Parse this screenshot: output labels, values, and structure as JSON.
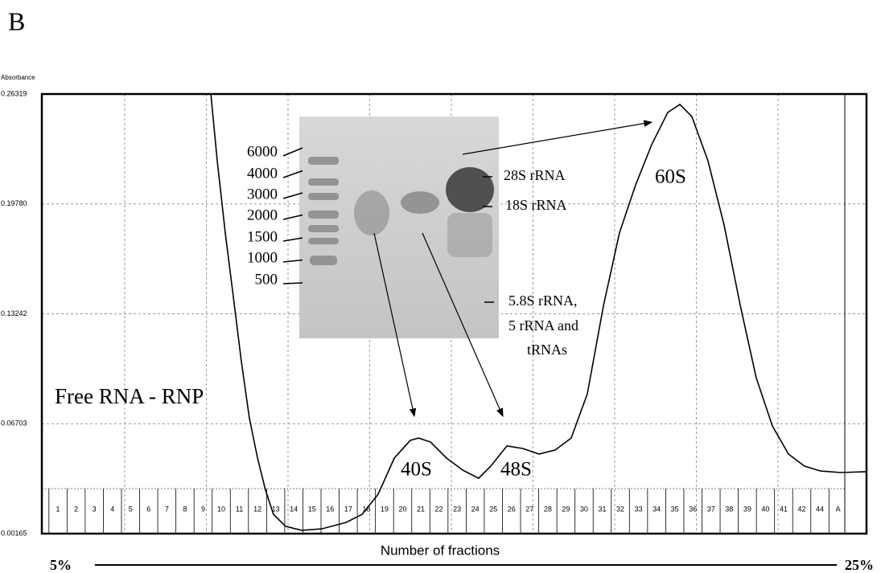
{
  "panel_label": "B",
  "chart_data": {
    "type": "line",
    "y_label": "Absorbance",
    "x_label": "Number of fractions",
    "color": "#000000",
    "gradient_start": "5%",
    "gradient_end": "25%",
    "ylim": [
      0.00165,
      0.26319
    ],
    "yticks": [
      0.00165,
      0.06703,
      0.13242,
      {
        "value": 0.1978,
        "label": "0.19780"
      },
      0.26319
    ],
    "grid": true,
    "xlim": [
      0.11,
      45.57
    ],
    "categories": [
      "1",
      "2",
      "3",
      "4",
      "5",
      "6",
      "7",
      "8",
      "9",
      "10",
      "11",
      "12",
      "13",
      "14",
      "15",
      "16",
      "17",
      "18",
      "19",
      "20",
      "21",
      "22",
      "23",
      "24",
      "25",
      "26",
      "27",
      "28",
      "29",
      "30",
      "31",
      "32",
      "33",
      "34",
      "35",
      "36",
      "37",
      "38",
      "39",
      "40",
      "41",
      "42",
      "44",
      "A"
    ],
    "x": [
      9.43,
      9.78,
      10.22,
      10.67,
      11.11,
      11.55,
      12.0,
      12.44,
      12.88,
      13.55,
      14.44,
      15.55,
      16.88,
      17.76,
      18.65,
      19.54,
      20.42,
      20.87,
      21.53,
      22.42,
      23.31,
      24.19,
      24.86,
      25.75,
      26.63,
      27.52,
      28.41,
      29.29,
      30.18,
      31.07,
      31.95,
      32.84,
      33.73,
      34.61,
      35.28,
      35.94,
      36.83,
      37.72,
      38.61,
      39.49,
      40.38,
      41.27,
      42.15,
      43.04,
      44.15,
      45.57
    ],
    "values": [
      0.2632,
      0.2235,
      0.1805,
      0.1422,
      0.104,
      0.0705,
      0.0466,
      0.0275,
      0.0131,
      0.006,
      0.0036,
      0.0045,
      0.0083,
      0.0131,
      0.0251,
      0.0466,
      0.0571,
      0.0585,
      0.0562,
      0.0466,
      0.0394,
      0.0346,
      0.0418,
      0.0538,
      0.0523,
      0.049,
      0.0514,
      0.0585,
      0.0848,
      0.1374,
      0.1805,
      0.2091,
      0.2331,
      0.2522,
      0.257,
      0.2498,
      0.2235,
      0.1852,
      0.1374,
      0.0944,
      0.0657,
      0.049,
      0.0418,
      0.0389,
      0.038,
      0.0385
    ],
    "annotations": [
      "Free RNA - RNP",
      "40S",
      "48S",
      "60S"
    ]
  },
  "gel": {
    "ladder": [
      "6000",
      "4000",
      "3000",
      "2000",
      "1500",
      "1000",
      "500"
    ],
    "bands": [
      "28S rRNA",
      "18S rRNA",
      "5.8S rRNA,",
      "5 rRNA and",
      "tRNAs"
    ]
  }
}
